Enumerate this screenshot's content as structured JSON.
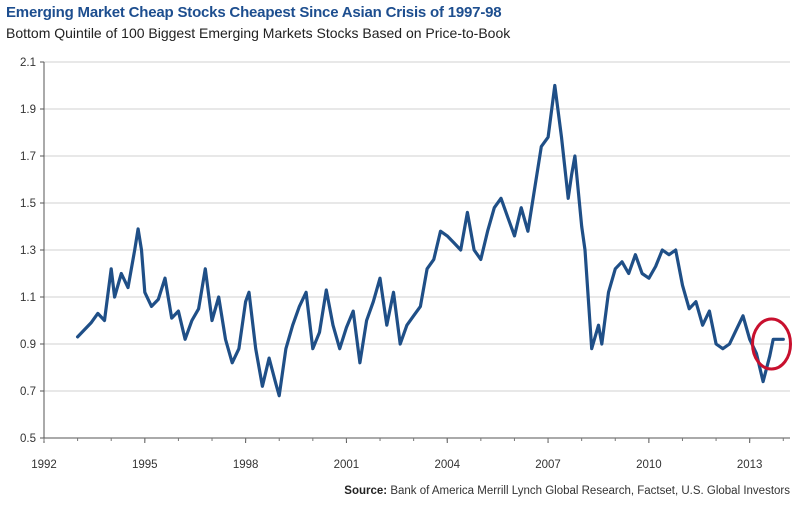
{
  "header": {
    "title": "Emerging Market Cheap Stocks Cheapest Since Asian Crisis of 1997-98",
    "subtitle": "Bottom Quintile of 100 Biggest Emerging Markets Stocks Based on Price-to-Book"
  },
  "footer": {
    "source_label": "Source:",
    "source_text": "Bank of America Merrill Lynch Global Research, Factset, U.S. Global Investors"
  },
  "colors": {
    "line": "#1f4f87",
    "highlight": "#c8102e",
    "grid": "#d0d0d0"
  },
  "chart_data": {
    "type": "line",
    "title": "Emerging Market Cheap Stocks Cheapest Since Asian Crisis of 1997-98",
    "subtitle": "Bottom Quintile of 100 Biggest Emerging Markets Stocks Based on Price-to-Book",
    "xlabel": "",
    "ylabel": "",
    "xlim": [
      1992,
      2014.2
    ],
    "ylim": [
      0.5,
      2.1
    ],
    "x_ticks": [
      "1992",
      "1995",
      "1998",
      "2001",
      "2004",
      "2007",
      "2010",
      "2013"
    ],
    "y_ticks": [
      "0.5",
      "0.7",
      "0.9",
      "1.1",
      "1.3",
      "1.5",
      "1.7",
      "1.9",
      "2.1"
    ],
    "grid": "horizontal",
    "annotation": {
      "type": "circle",
      "x": 2013.65,
      "y": 0.9,
      "label": ""
    },
    "series": [
      {
        "name": "Price-to-Book",
        "x": [
          1993.0,
          1993.2,
          1993.4,
          1993.6,
          1993.8,
          1994.0,
          1994.1,
          1994.3,
          1994.5,
          1994.7,
          1994.8,
          1994.9,
          1995.0,
          1995.2,
          1995.4,
          1995.6,
          1995.8,
          1996.0,
          1996.2,
          1996.4,
          1996.6,
          1996.8,
          1997.0,
          1997.2,
          1997.4,
          1997.6,
          1997.8,
          1998.0,
          1998.1,
          1998.3,
          1998.5,
          1998.7,
          1998.9,
          1999.0,
          1999.2,
          1999.4,
          1999.6,
          1999.8,
          2000.0,
          2000.2,
          2000.4,
          2000.6,
          2000.8,
          2001.0,
          2001.2,
          2001.4,
          2001.6,
          2001.8,
          2002.0,
          2002.2,
          2002.4,
          2002.6,
          2002.8,
          2003.0,
          2003.2,
          2003.4,
          2003.6,
          2003.8,
          2004.0,
          2004.2,
          2004.4,
          2004.6,
          2004.8,
          2005.0,
          2005.2,
          2005.4,
          2005.6,
          2005.8,
          2006.0,
          2006.2,
          2006.4,
          2006.6,
          2006.8,
          2007.0,
          2007.2,
          2007.4,
          2007.6,
          2007.7,
          2007.8,
          2008.0,
          2008.1,
          2008.3,
          2008.5,
          2008.6,
          2008.8,
          2009.0,
          2009.2,
          2009.4,
          2009.6,
          2009.8,
          2010.0,
          2010.2,
          2010.4,
          2010.6,
          2010.8,
          2011.0,
          2011.2,
          2011.4,
          2011.6,
          2011.8,
          2012.0,
          2012.2,
          2012.4,
          2012.6,
          2012.8,
          2013.0,
          2013.2,
          2013.4,
          2013.6,
          2013.7,
          2013.9,
          2014.0
        ],
        "values": [
          0.93,
          0.96,
          0.99,
          1.03,
          1.0,
          1.22,
          1.1,
          1.2,
          1.14,
          1.3,
          1.39,
          1.3,
          1.12,
          1.06,
          1.09,
          1.18,
          1.01,
          1.04,
          0.92,
          1.0,
          1.05,
          1.22,
          1.0,
          1.1,
          0.92,
          0.82,
          0.88,
          1.08,
          1.12,
          0.88,
          0.72,
          0.84,
          0.73,
          0.68,
          0.88,
          0.98,
          1.06,
          1.12,
          0.88,
          0.95,
          1.13,
          0.98,
          0.88,
          0.97,
          1.04,
          0.82,
          1.0,
          1.08,
          1.18,
          0.98,
          1.12,
          0.9,
          0.98,
          1.02,
          1.06,
          1.22,
          1.26,
          1.38,
          1.36,
          1.33,
          1.3,
          1.46,
          1.3,
          1.26,
          1.38,
          1.48,
          1.52,
          1.44,
          1.36,
          1.48,
          1.38,
          1.56,
          1.74,
          1.78,
          2.0,
          1.78,
          1.52,
          1.62,
          1.7,
          1.4,
          1.3,
          0.88,
          0.98,
          0.9,
          1.12,
          1.22,
          1.25,
          1.2,
          1.28,
          1.2,
          1.18,
          1.23,
          1.3,
          1.28,
          1.3,
          1.15,
          1.05,
          1.08,
          0.98,
          1.04,
          0.9,
          0.88,
          0.9,
          0.96,
          1.02,
          0.92,
          0.86,
          0.74,
          0.85,
          0.92,
          0.92,
          0.92
        ]
      }
    ]
  }
}
